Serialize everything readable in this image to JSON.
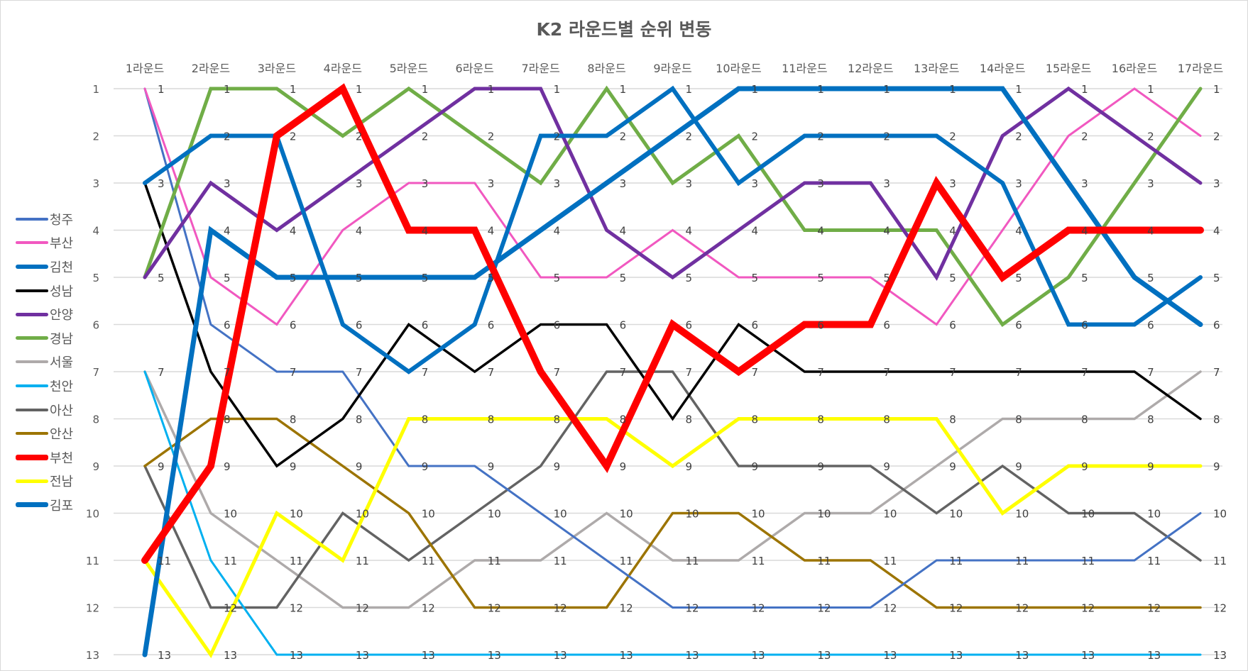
{
  "chart_data": {
    "type": "line",
    "title": "K2 라운드별 순위 변동",
    "xlabel": "",
    "ylabel": "",
    "y_inverted": true,
    "ylim": [
      1,
      13
    ],
    "yticks": [
      1,
      2,
      3,
      4,
      5,
      6,
      7,
      8,
      9,
      10,
      11,
      12,
      13
    ],
    "grid": true,
    "legend_position": "left",
    "categories": [
      "1라운드",
      "2라운드",
      "3라운드",
      "4라운드",
      "5라운드",
      "6라운드",
      "7라운드",
      "8라운드",
      "9라운드",
      "10라운드",
      "11라운드",
      "12라운드",
      "13라운드",
      "14라운드",
      "15라운드",
      "16라운드",
      "17라운드"
    ],
    "series": [
      {
        "name": "청주",
        "color": "#4472c4",
        "width": 3,
        "values": [
          1,
          6,
          7,
          7,
          9,
          9,
          10,
          11,
          12,
          12,
          12,
          12,
          11,
          11,
          11,
          11,
          10
        ]
      },
      {
        "name": "부산",
        "color": "#f158c0",
        "width": 3,
        "values": [
          1,
          5,
          6,
          4,
          3,
          3,
          5,
          5,
          4,
          5,
          5,
          5,
          6,
          4,
          2,
          1,
          2
        ]
      },
      {
        "name": "김천",
        "color": "#0070c0",
        "width": 6,
        "values": [
          3,
          2,
          2,
          6,
          7,
          6,
          2,
          2,
          1,
          3,
          2,
          2,
          2,
          3,
          6,
          6,
          5
        ]
      },
      {
        "name": "성남",
        "color": "#000000",
        "width": 3.5,
        "values": [
          3,
          7,
          9,
          8,
          6,
          7,
          6,
          6,
          8,
          6,
          7,
          7,
          7,
          7,
          7,
          7,
          8
        ]
      },
      {
        "name": "안양",
        "color": "#7030a0",
        "width": 5,
        "values": [
          5,
          3,
          4,
          3,
          2,
          1,
          1,
          4,
          5,
          4,
          3,
          3,
          5,
          2,
          1,
          2,
          3
        ]
      },
      {
        "name": "경남",
        "color": "#70ad47",
        "width": 5,
        "values": [
          5,
          1,
          1,
          2,
          1,
          2,
          3,
          1,
          3,
          2,
          4,
          4,
          4,
          6,
          5,
          3,
          1
        ]
      },
      {
        "name": "서울",
        "color": "#aeaaaa",
        "width": 3.5,
        "values": [
          7,
          10,
          11,
          12,
          12,
          11,
          11,
          10,
          11,
          11,
          10,
          10,
          9,
          8,
          8,
          8,
          7
        ]
      },
      {
        "name": "천안",
        "color": "#00b0f0",
        "width": 3,
        "values": [
          7,
          11,
          13,
          13,
          13,
          13,
          13,
          13,
          13,
          13,
          13,
          13,
          13,
          13,
          13,
          13,
          13
        ]
      },
      {
        "name": "아산",
        "color": "#636363",
        "width": 3.5,
        "values": [
          9,
          12,
          12,
          10,
          11,
          10,
          9,
          7,
          7,
          9,
          9,
          9,
          10,
          9,
          10,
          10,
          11
        ]
      },
      {
        "name": "안산",
        "color": "#9c7400",
        "width": 3.5,
        "values": [
          9,
          8,
          8,
          9,
          10,
          12,
          12,
          12,
          10,
          10,
          11,
          11,
          12,
          12,
          12,
          12,
          12
        ]
      },
      {
        "name": "부천",
        "color": "#ff0000",
        "width": 10,
        "values": [
          11,
          9,
          2,
          1,
          4,
          4,
          7,
          9,
          6,
          7,
          6,
          6,
          3,
          5,
          4,
          4,
          4
        ]
      },
      {
        "name": "전남",
        "color": "#ffff00",
        "width": 5,
        "values": [
          11,
          13,
          10,
          11,
          8,
          8,
          8,
          8,
          9,
          8,
          8,
          8,
          8,
          10,
          9,
          9,
          9
        ]
      },
      {
        "name": "김포",
        "color": "#0070c0",
        "width": 7,
        "values": [
          13,
          4,
          5,
          5,
          5,
          5,
          4,
          3,
          2,
          1,
          1,
          1,
          1,
          1,
          3,
          5,
          6
        ]
      }
    ]
  }
}
